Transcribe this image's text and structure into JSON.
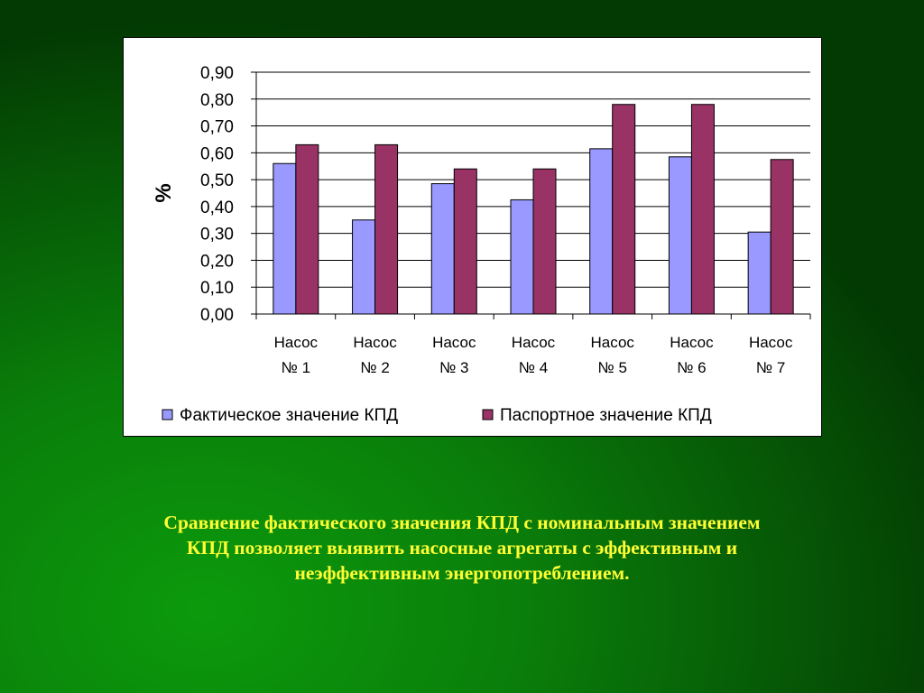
{
  "chart_data": {
    "type": "bar",
    "title": "",
    "xlabel": "",
    "ylabel": "%",
    "ylim": [
      0,
      0.9
    ],
    "ytick_values": [
      0,
      0.1,
      0.2,
      0.3,
      0.4,
      0.5,
      0.6,
      0.7,
      0.8,
      0.9
    ],
    "ytick_labels": [
      "0,00",
      "0,10",
      "0,20",
      "0,30",
      "0,40",
      "0,50",
      "0,60",
      "0,70",
      "0,80",
      "0,90"
    ],
    "categories": [
      [
        "Насос",
        "№ 1"
      ],
      [
        "Насос",
        "№ 2"
      ],
      [
        "Насос",
        "№ 3"
      ],
      [
        "Насос",
        "№ 4"
      ],
      [
        "Насос",
        "№ 5"
      ],
      [
        "Насос",
        "№ 6"
      ],
      [
        "Насос",
        "№ 7"
      ]
    ],
    "series": [
      {
        "name": "Фактическое значение КПД",
        "color": "#9999ff",
        "values": [
          0.56,
          0.35,
          0.485,
          0.425,
          0.615,
          0.585,
          0.305
        ]
      },
      {
        "name": "Паспортное значение КПД",
        "color": "#993366",
        "values": [
          0.63,
          0.63,
          0.54,
          0.54,
          0.78,
          0.78,
          0.575
        ]
      }
    ],
    "grid": true,
    "legend_position": "bottom"
  },
  "caption": {
    "lines": [
      "Сравнение фактического значения КПД с номинальным значением",
      "КПД позволяет выявить насосные агрегаты с эффективным и",
      "неэффективным энергопотреблением."
    ]
  }
}
